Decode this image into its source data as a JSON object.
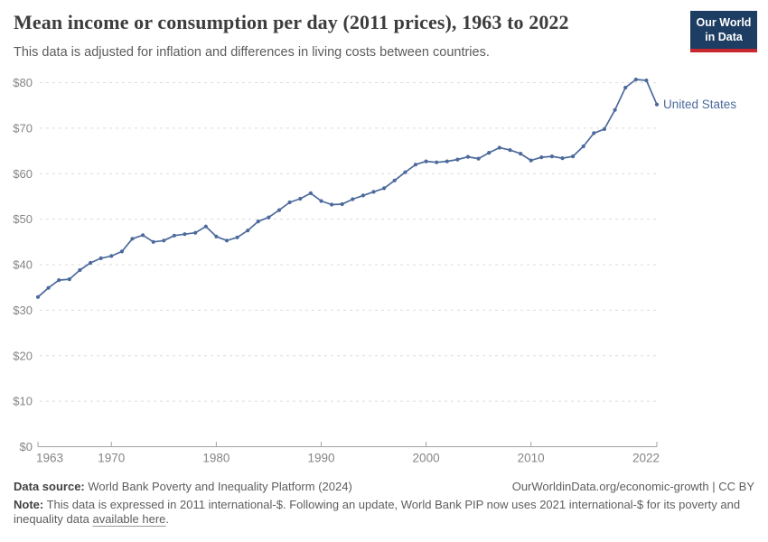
{
  "header": {
    "title": "Mean income or consumption per day (2011 prices), 1963 to 2022",
    "subtitle": "This data is adjusted for inflation and differences in living costs between countries.",
    "logo": {
      "line1": "Our World",
      "line2": "in Data",
      "bg_color": "#1d3d63",
      "bar_color": "#c9272e"
    }
  },
  "chart_data": {
    "type": "line",
    "title": "Mean income or consumption per day (2011 prices), 1963 to 2022",
    "xlabel": "",
    "ylabel": "",
    "xlim": [
      1963,
      2022
    ],
    "ylim": [
      0,
      80
    ],
    "x_ticks": [
      1963,
      1970,
      1980,
      1990,
      2000,
      2010,
      2022
    ],
    "y_ticks": [
      0,
      10,
      20,
      30,
      40,
      50,
      60,
      70,
      80
    ],
    "y_tick_labels": [
      "$0",
      "$10",
      "$20",
      "$30",
      "$40",
      "$50",
      "$60",
      "$70",
      "$80"
    ],
    "grid": "horizontal-dashed",
    "grid_color": "#dcdcdc",
    "axis_color": "#a3a3a3",
    "tick_label_color": "#858585",
    "legend_position": "end-of-line-label",
    "x": [
      1963,
      1964,
      1965,
      1966,
      1967,
      1968,
      1969,
      1970,
      1971,
      1972,
      1973,
      1974,
      1975,
      1976,
      1977,
      1978,
      1979,
      1980,
      1981,
      1982,
      1983,
      1984,
      1985,
      1986,
      1987,
      1988,
      1989,
      1990,
      1991,
      1992,
      1993,
      1994,
      1995,
      1996,
      1997,
      1998,
      1999,
      2000,
      2001,
      2002,
      2003,
      2004,
      2005,
      2006,
      2007,
      2008,
      2009,
      2010,
      2011,
      2012,
      2013,
      2014,
      2015,
      2016,
      2017,
      2018,
      2019,
      2020,
      2021,
      2022
    ],
    "series": [
      {
        "name": "United States",
        "color": "#4c6a9c",
        "values": [
          32.9,
          34.9,
          36.6,
          36.8,
          38.8,
          40.4,
          41.4,
          41.9,
          42.9,
          45.7,
          46.5,
          45.0,
          45.3,
          46.4,
          46.7,
          47.0,
          48.4,
          46.2,
          45.3,
          46.0,
          47.5,
          49.5,
          50.4,
          52.0,
          53.7,
          54.5,
          55.7,
          54.0,
          53.2,
          53.3,
          54.4,
          55.2,
          56.0,
          56.8,
          58.5,
          60.3,
          62.0,
          62.7,
          62.5,
          62.7,
          63.1,
          63.7,
          63.3,
          64.6,
          65.7,
          65.2,
          64.4,
          62.9,
          63.6,
          63.8,
          63.4,
          63.8,
          66.0,
          68.9,
          69.8,
          74.0,
          78.9,
          80.7,
          80.5,
          75.2
        ]
      }
    ]
  },
  "footer": {
    "data_source_label": "Data source:",
    "data_source": "World Bank Poverty and Inequality Platform (2024)",
    "attribution": "OurWorldinData.org/economic-growth | CC BY",
    "note_label": "Note:",
    "note_text": "This data is expressed in 2011 international-$. Following an update, World Bank PIP now uses 2021 international-$ for its poverty and inequality data",
    "note_link": "available here",
    "note_suffix": "."
  }
}
